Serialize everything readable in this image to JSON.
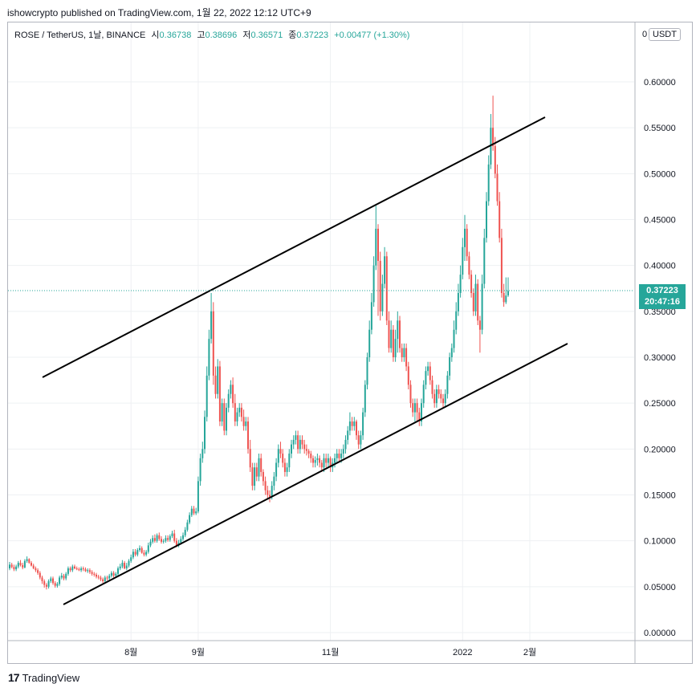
{
  "header": {
    "publisher": "ishowcrypto published on TradingView.com, 1월 22, 2022 12:12 UTC+9"
  },
  "legend": {
    "symbol": "ROSE / TetherUS, 1날, BINANCE",
    "open_label": "시",
    "open": "0.36738",
    "high_label": "고",
    "high": "0.38696",
    "low_label": "저",
    "low": "0.36571",
    "close_label": "종",
    "close": "0.37223",
    "change": "+0.00477 (+1.30%)"
  },
  "price_axis": {
    "currency": "USDT",
    "zero_marker": "0",
    "current_price": "0.37223",
    "countdown": "20:47:16"
  },
  "footer": {
    "brand": "TradingView"
  },
  "colors": {
    "up": "#26a69a",
    "down": "#ef5350",
    "trendline": "#000000",
    "grid": "#eef0f3"
  },
  "chart_data": {
    "type": "candlestick",
    "title": "",
    "xlabel": "",
    "ylabel": "",
    "ylim": [
      -0.01,
      0.64
    ],
    "y_ticks": [
      "0.60000",
      "0.55000",
      "0.50000",
      "0.45000",
      "0.40000",
      "0.35000",
      "0.30000",
      "0.25000",
      "0.20000",
      "0.15000",
      "0.10000",
      "0.05000",
      "0.00000"
    ],
    "x_ticks": [
      "8월",
      "9월",
      "11월",
      "2022",
      "2월"
    ],
    "grid": true,
    "current_price": 0.37223,
    "start_date": "2021-06-06",
    "close": [
      0.074,
      0.0715,
      0.069,
      0.072,
      0.076,
      0.0735,
      0.071,
      0.078,
      0.08,
      0.076,
      0.073,
      0.07,
      0.068,
      0.065,
      0.06,
      0.056,
      0.052,
      0.05,
      0.056,
      0.059,
      0.054,
      0.051,
      0.053,
      0.06,
      0.062,
      0.059,
      0.064,
      0.07,
      0.068,
      0.072,
      0.07,
      0.069,
      0.068,
      0.07,
      0.069,
      0.067,
      0.068,
      0.066,
      0.064,
      0.063,
      0.061,
      0.06,
      0.058,
      0.056,
      0.06,
      0.059,
      0.062,
      0.065,
      0.062,
      0.064,
      0.07,
      0.072,
      0.076,
      0.07,
      0.073,
      0.078,
      0.082,
      0.088,
      0.085,
      0.09,
      0.092,
      0.087,
      0.085,
      0.088,
      0.095,
      0.099,
      0.103,
      0.1,
      0.106,
      0.102,
      0.099,
      0.1,
      0.103,
      0.101,
      0.105,
      0.108,
      0.1,
      0.095,
      0.098,
      0.102,
      0.106,
      0.112,
      0.12,
      0.128,
      0.135,
      0.13,
      0.132,
      0.165,
      0.19,
      0.2,
      0.235,
      0.28,
      0.32,
      0.35,
      0.28,
      0.26,
      0.29,
      0.23,
      0.25,
      0.22,
      0.245,
      0.26,
      0.27,
      0.25,
      0.23,
      0.24,
      0.245,
      0.235,
      0.225,
      0.23,
      0.2,
      0.18,
      0.16,
      0.18,
      0.17,
      0.19,
      0.175,
      0.165,
      0.155,
      0.15,
      0.148,
      0.16,
      0.17,
      0.185,
      0.2,
      0.195,
      0.185,
      0.175,
      0.18,
      0.195,
      0.205,
      0.21,
      0.215,
      0.2,
      0.21,
      0.205,
      0.2,
      0.198,
      0.195,
      0.19,
      0.185,
      0.188,
      0.19,
      0.185,
      0.18,
      0.19,
      0.185,
      0.19,
      0.18,
      0.185,
      0.19,
      0.195,
      0.19,
      0.195,
      0.2,
      0.21,
      0.22,
      0.23,
      0.225,
      0.23,
      0.215,
      0.205,
      0.215,
      0.24,
      0.27,
      0.3,
      0.33,
      0.36,
      0.4,
      0.44,
      0.405,
      0.35,
      0.38,
      0.41,
      0.34,
      0.31,
      0.33,
      0.3,
      0.32,
      0.34,
      0.31,
      0.3,
      0.31,
      0.29,
      0.27,
      0.25,
      0.24,
      0.25,
      0.24,
      0.23,
      0.25,
      0.27,
      0.285,
      0.29,
      0.275,
      0.26,
      0.25,
      0.265,
      0.26,
      0.255,
      0.25,
      0.26,
      0.28,
      0.3,
      0.31,
      0.33,
      0.35,
      0.37,
      0.39,
      0.42,
      0.44,
      0.41,
      0.39,
      0.37,
      0.35,
      0.38,
      0.34,
      0.33,
      0.38,
      0.43,
      0.47,
      0.51,
      0.55,
      0.53,
      0.5,
      0.47,
      0.43,
      0.37,
      0.36,
      0.3672,
      0.3722
    ],
    "open": [
      0.07,
      0.074,
      0.0715,
      0.069,
      0.072,
      0.076,
      0.0735,
      0.071,
      0.078,
      0.08,
      0.076,
      0.073,
      0.07,
      0.068,
      0.065,
      0.06,
      0.056,
      0.052,
      0.05,
      0.056,
      0.059,
      0.054,
      0.051,
      0.053,
      0.06,
      0.062,
      0.059,
      0.064,
      0.07,
      0.068,
      0.072,
      0.07,
      0.069,
      0.068,
      0.07,
      0.069,
      0.067,
      0.068,
      0.066,
      0.064,
      0.063,
      0.061,
      0.06,
      0.058,
      0.056,
      0.06,
      0.059,
      0.062,
      0.065,
      0.062,
      0.064,
      0.07,
      0.072,
      0.076,
      0.07,
      0.073,
      0.078,
      0.082,
      0.088,
      0.085,
      0.09,
      0.092,
      0.087,
      0.085,
      0.088,
      0.095,
      0.099,
      0.103,
      0.1,
      0.106,
      0.102,
      0.099,
      0.1,
      0.103,
      0.101,
      0.105,
      0.108,
      0.1,
      0.095,
      0.098,
      0.102,
      0.106,
      0.112,
      0.12,
      0.128,
      0.135,
      0.13,
      0.132,
      0.165,
      0.19,
      0.2,
      0.235,
      0.28,
      0.32,
      0.35,
      0.28,
      0.26,
      0.29,
      0.23,
      0.25,
      0.22,
      0.245,
      0.26,
      0.27,
      0.25,
      0.23,
      0.24,
      0.245,
      0.235,
      0.225,
      0.23,
      0.2,
      0.18,
      0.16,
      0.18,
      0.17,
      0.19,
      0.175,
      0.165,
      0.155,
      0.15,
      0.148,
      0.16,
      0.17,
      0.185,
      0.2,
      0.195,
      0.185,
      0.175,
      0.18,
      0.195,
      0.205,
      0.21,
      0.215,
      0.2,
      0.21,
      0.205,
      0.2,
      0.198,
      0.195,
      0.19,
      0.185,
      0.188,
      0.19,
      0.185,
      0.18,
      0.19,
      0.185,
      0.19,
      0.18,
      0.185,
      0.19,
      0.195,
      0.19,
      0.195,
      0.2,
      0.21,
      0.22,
      0.23,
      0.225,
      0.23,
      0.215,
      0.205,
      0.215,
      0.24,
      0.27,
      0.3,
      0.33,
      0.36,
      0.4,
      0.44,
      0.405,
      0.35,
      0.38,
      0.41,
      0.34,
      0.31,
      0.33,
      0.3,
      0.32,
      0.34,
      0.31,
      0.3,
      0.31,
      0.29,
      0.27,
      0.25,
      0.24,
      0.25,
      0.24,
      0.23,
      0.25,
      0.27,
      0.285,
      0.29,
      0.275,
      0.26,
      0.25,
      0.265,
      0.26,
      0.255,
      0.25,
      0.26,
      0.28,
      0.3,
      0.31,
      0.33,
      0.35,
      0.37,
      0.39,
      0.42,
      0.44,
      0.41,
      0.39,
      0.37,
      0.35,
      0.38,
      0.34,
      0.33,
      0.38,
      0.43,
      0.47,
      0.51,
      0.55,
      0.53,
      0.5,
      0.47,
      0.43,
      0.37,
      0.36,
      0.3674
    ],
    "high": [
      0.077,
      0.076,
      0.074,
      0.074,
      0.078,
      0.079,
      0.076,
      0.08,
      0.083,
      0.081,
      0.078,
      0.075,
      0.072,
      0.07,
      0.067,
      0.062,
      0.058,
      0.054,
      0.058,
      0.061,
      0.061,
      0.056,
      0.055,
      0.062,
      0.065,
      0.064,
      0.066,
      0.072,
      0.072,
      0.074,
      0.074,
      0.072,
      0.071,
      0.072,
      0.072,
      0.071,
      0.07,
      0.07,
      0.068,
      0.066,
      0.065,
      0.063,
      0.062,
      0.06,
      0.062,
      0.062,
      0.064,
      0.067,
      0.067,
      0.066,
      0.072,
      0.075,
      0.079,
      0.078,
      0.076,
      0.08,
      0.085,
      0.091,
      0.091,
      0.092,
      0.095,
      0.094,
      0.09,
      0.09,
      0.098,
      0.102,
      0.106,
      0.107,
      0.108,
      0.109,
      0.105,
      0.102,
      0.106,
      0.106,
      0.107,
      0.111,
      0.112,
      0.103,
      0.101,
      0.105,
      0.109,
      0.115,
      0.123,
      0.131,
      0.138,
      0.138,
      0.136,
      0.17,
      0.195,
      0.208,
      0.242,
      0.29,
      0.33,
      0.37,
      0.36,
      0.29,
      0.298,
      0.296,
      0.255,
      0.255,
      0.25,
      0.265,
      0.275,
      0.278,
      0.26,
      0.245,
      0.25,
      0.25,
      0.243,
      0.235,
      0.235,
      0.21,
      0.185,
      0.185,
      0.185,
      0.195,
      0.195,
      0.178,
      0.17,
      0.16,
      0.155,
      0.165,
      0.175,
      0.19,
      0.205,
      0.208,
      0.2,
      0.19,
      0.185,
      0.2,
      0.21,
      0.215,
      0.22,
      0.22,
      0.215,
      0.215,
      0.21,
      0.205,
      0.2,
      0.198,
      0.193,
      0.192,
      0.195,
      0.193,
      0.188,
      0.195,
      0.195,
      0.195,
      0.192,
      0.19,
      0.195,
      0.2,
      0.2,
      0.2,
      0.205,
      0.215,
      0.225,
      0.24,
      0.235,
      0.235,
      0.232,
      0.22,
      0.22,
      0.245,
      0.275,
      0.305,
      0.34,
      0.37,
      0.41,
      0.465,
      0.445,
      0.415,
      0.39,
      0.42,
      0.415,
      0.35,
      0.34,
      0.335,
      0.33,
      0.35,
      0.345,
      0.315,
      0.315,
      0.315,
      0.295,
      0.275,
      0.255,
      0.255,
      0.255,
      0.245,
      0.255,
      0.275,
      0.29,
      0.295,
      0.295,
      0.28,
      0.265,
      0.27,
      0.27,
      0.265,
      0.26,
      0.265,
      0.285,
      0.305,
      0.315,
      0.34,
      0.36,
      0.38,
      0.4,
      0.43,
      0.455,
      0.445,
      0.415,
      0.395,
      0.375,
      0.39,
      0.385,
      0.345,
      0.39,
      0.44,
      0.48,
      0.52,
      0.565,
      0.585,
      0.54,
      0.51,
      0.48,
      0.44,
      0.38,
      0.387,
      0.387
    ],
    "low": [
      0.068,
      0.07,
      0.067,
      0.067,
      0.07,
      0.072,
      0.069,
      0.07,
      0.076,
      0.075,
      0.072,
      0.069,
      0.066,
      0.063,
      0.058,
      0.053,
      0.049,
      0.047,
      0.048,
      0.054,
      0.052,
      0.049,
      0.049,
      0.051,
      0.058,
      0.057,
      0.057,
      0.062,
      0.066,
      0.066,
      0.069,
      0.068,
      0.067,
      0.066,
      0.067,
      0.066,
      0.065,
      0.064,
      0.062,
      0.061,
      0.059,
      0.058,
      0.056,
      0.054,
      0.054,
      0.057,
      0.057,
      0.06,
      0.06,
      0.06,
      0.062,
      0.068,
      0.07,
      0.069,
      0.068,
      0.071,
      0.076,
      0.08,
      0.083,
      0.083,
      0.088,
      0.086,
      0.083,
      0.083,
      0.086,
      0.093,
      0.097,
      0.098,
      0.098,
      0.1,
      0.097,
      0.097,
      0.098,
      0.099,
      0.099,
      0.103,
      0.098,
      0.093,
      0.093,
      0.096,
      0.1,
      0.104,
      0.11,
      0.118,
      0.126,
      0.128,
      0.128,
      0.13,
      0.16,
      0.185,
      0.195,
      0.23,
      0.275,
      0.315,
      0.27,
      0.255,
      0.255,
      0.225,
      0.225,
      0.215,
      0.215,
      0.24,
      0.255,
      0.245,
      0.225,
      0.225,
      0.235,
      0.23,
      0.22,
      0.22,
      0.195,
      0.175,
      0.155,
      0.155,
      0.165,
      0.165,
      0.17,
      0.16,
      0.15,
      0.145,
      0.142,
      0.145,
      0.155,
      0.165,
      0.18,
      0.19,
      0.18,
      0.17,
      0.17,
      0.175,
      0.19,
      0.2,
      0.205,
      0.195,
      0.195,
      0.2,
      0.195,
      0.193,
      0.19,
      0.185,
      0.18,
      0.18,
      0.182,
      0.18,
      0.175,
      0.175,
      0.18,
      0.18,
      0.175,
      0.175,
      0.18,
      0.185,
      0.185,
      0.185,
      0.19,
      0.195,
      0.205,
      0.215,
      0.22,
      0.22,
      0.21,
      0.2,
      0.2,
      0.21,
      0.235,
      0.265,
      0.295,
      0.325,
      0.355,
      0.395,
      0.345,
      0.34,
      0.345,
      0.375,
      0.335,
      0.305,
      0.305,
      0.295,
      0.295,
      0.305,
      0.305,
      0.295,
      0.295,
      0.285,
      0.265,
      0.245,
      0.235,
      0.23,
      0.23,
      0.225,
      0.225,
      0.245,
      0.265,
      0.28,
      0.27,
      0.255,
      0.245,
      0.245,
      0.255,
      0.25,
      0.245,
      0.245,
      0.255,
      0.275,
      0.295,
      0.305,
      0.325,
      0.345,
      0.365,
      0.385,
      0.405,
      0.405,
      0.385,
      0.365,
      0.345,
      0.345,
      0.335,
      0.305,
      0.325,
      0.375,
      0.425,
      0.465,
      0.505,
      0.525,
      0.495,
      0.465,
      0.425,
      0.365,
      0.355,
      0.358,
      0.3657
    ]
  }
}
